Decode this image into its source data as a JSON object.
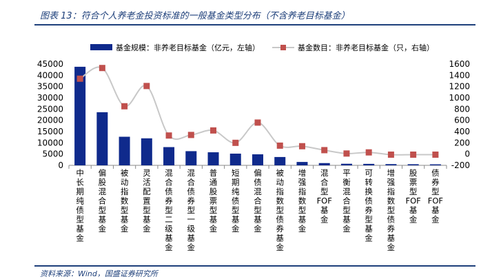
{
  "header": {
    "title": "图表 13：符合个人养老金投资标准的一般基金类型分布（不含养老目标基金）"
  },
  "footer": {
    "source": "资料来源：Wind，国盛证券研究所"
  },
  "colors": {
    "bar": "#0f2a8c",
    "line": "#c8c8c8",
    "marker": "#c0504d",
    "rule": "#1d3f7a"
  },
  "chart_data": {
    "type": "bar",
    "categories": [
      "中长期纯债型基金",
      "偏股混合型基金",
      "被动指数型基金",
      "灵活配置型基金",
      "混合债券型二级基金",
      "混合债券型一级基金",
      "普通股票型基金",
      "短期纯债型基金",
      "偏债混合型基金",
      "被动指数型债券基金",
      "增强指数型基金",
      "混合型FOF基金",
      "平衡混合型基金",
      "可转换债券型基金",
      "增强指数型债券基金",
      "股票型FOF基金",
      "债券型FOF基金"
    ],
    "series": [
      {
        "name": "基金规模：非养老目标基金（亿元，左轴）",
        "type": "bar",
        "axis": "left",
        "values": [
          43800,
          23600,
          12700,
          12000,
          8100,
          6300,
          5800,
          5200,
          4900,
          3700,
          1500,
          1000,
          700,
          650,
          550,
          500,
          450
        ]
      },
      {
        "name": "基金数目：非养老目标基金（只，右轴）",
        "type": "line",
        "axis": "right",
        "values": [
          1340,
          1530,
          850,
          1210,
          330,
          340,
          420,
          200,
          560,
          150,
          140,
          70,
          10,
          30,
          -10,
          -10,
          -10
        ]
      }
    ],
    "y_left": {
      "min": 0,
      "max": 45000,
      "ticks": [
        0,
        5000,
        10000,
        15000,
        20000,
        25000,
        30000,
        35000,
        40000,
        45000
      ]
    },
    "y_right": {
      "min": -200,
      "max": 1600,
      "ticks": [
        -200,
        0,
        200,
        400,
        600,
        800,
        1000,
        1200,
        1400,
        1600
      ]
    },
    "legend": "top",
    "grid": false
  }
}
